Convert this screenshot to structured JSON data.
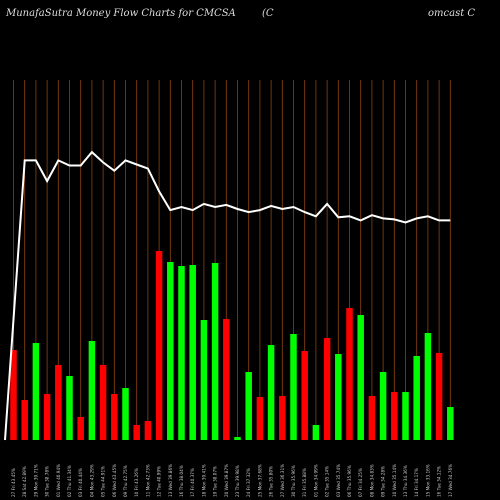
{
  "title": {
    "left": "MunafaSutra  Money Flow  Charts for CMCSA",
    "mid": "(C",
    "right": "omcast C"
  },
  "colors": {
    "background": "#000000",
    "grid": "#8b4513",
    "up": "#00ff00",
    "down": "#ff0000",
    "line": "#ffffff"
  },
  "chart_data": {
    "type": "bar",
    "categories": [
      "27 Fri 43.45%",
      "28 Sat 42.89%",
      "29 Mon 39.71%",
      "30 Tue 38.78%",
      "01 Wed 40.94%",
      "02 Thu 41.34%",
      "03 Fri 40.44%",
      "04 Mon 43.29%",
      "05 Tue 44.91%",
      "06 Wed 43.45%",
      "09 Thu 42.75%",
      "10 Fri 43.26%",
      "11 Mon 42.73%",
      "12 Tue 40.99%",
      "13 Wed 39.86%",
      "16 Thu 38.04%",
      "17 Fri 40.37%",
      "18 Mon 39.41%",
      "19 Tue 38.07%",
      "20 Wed 39.87%",
      "23 Thu 39.98%",
      "24 Fri 37.32%",
      "25 Mon 37.68%",
      "26 Tue 35.80%",
      "27 Wed 36.31%",
      "30 Thu 35.96%",
      "31 Fri 35.88%",
      "01 Mon 34.99%",
      "02 Tue 35.14%",
      "03 Wed 35.74%",
      "06 Thu 35.96%",
      "07 Fri 34.25%",
      "08 Mon 34.83%",
      "09 Tue 34.28%",
      "10 Wed 35.14%",
      "13 Thu 34.36%",
      "14 Fri 34.17%",
      "15 Mon 33.16%",
      "16 Tue 34.12%",
      "17 Wed 34.76%"
    ],
    "flow_direction": [
      "down",
      "down",
      "up",
      "down",
      "down",
      "up",
      "down",
      "up",
      "down",
      "down",
      "up",
      "down",
      "down",
      "down",
      "up",
      "up",
      "up",
      "up",
      "up",
      "down",
      "up",
      "up",
      "down",
      "up",
      "down",
      "up",
      "down",
      "up",
      "down",
      "up",
      "down",
      "up",
      "down",
      "up",
      "down",
      "up",
      "up",
      "up",
      "down",
      "up"
    ],
    "series": [
      {
        "values": [
          90,
          40,
          97,
          46,
          75,
          64,
          23,
          99,
          75,
          46,
          52,
          15,
          19,
          189,
          178,
          174,
          175,
          120,
          177,
          121,
          3,
          68,
          43,
          95,
          44,
          106,
          89,
          15,
          102,
          86,
          132,
          125,
          44,
          68,
          48,
          48,
          84,
          107,
          87,
          33
        ]
      },
      {
        "values": [
          45.0,
          72.0,
          72.0,
          70.0,
          72.0,
          71.5,
          71.5,
          72.8,
          71.8,
          71.0,
          72.0,
          71.6,
          71.2,
          69.0,
          67.2,
          67.5,
          67.2,
          67.8,
          67.5,
          67.7,
          67.3,
          67.0,
          67.2,
          67.6,
          67.3,
          67.5,
          67.0,
          66.6,
          67.8,
          66.5,
          66.6,
          66.2,
          66.7,
          66.4,
          66.3,
          66.0,
          66.4,
          66.6,
          66.2,
          66.2
        ]
      }
    ],
    "xlabel": "",
    "ylabel": "",
    "grid": "vertical lines at each category"
  }
}
